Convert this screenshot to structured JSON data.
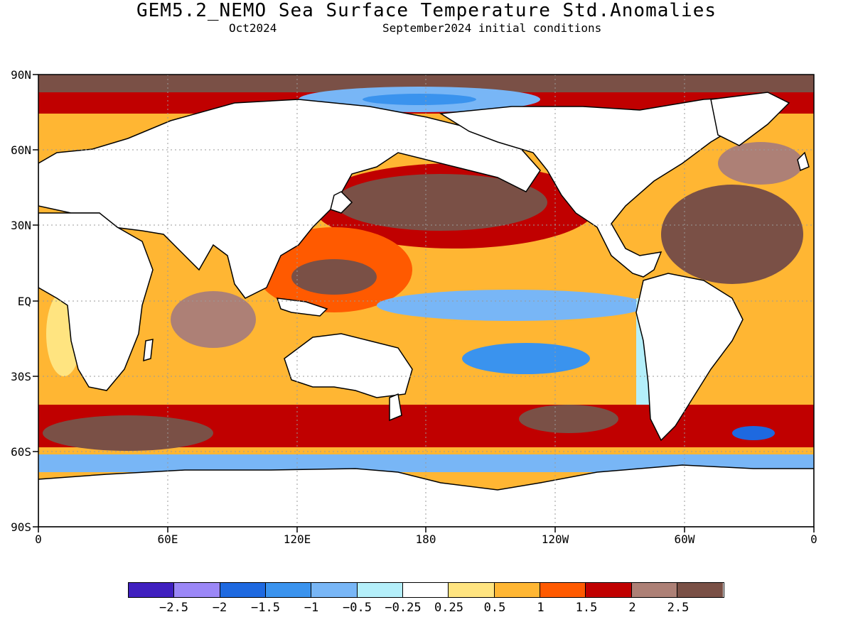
{
  "header": {
    "title": "GEM5.2_NEMO Sea Surface Temperature Std.Anomalies",
    "valid_month": "Oct2024",
    "init": "September2024 initial conditions"
  },
  "map": {
    "lat_labels": [
      "90N",
      "60N",
      "30N",
      "EQ",
      "30S",
      "60S",
      "90S"
    ],
    "lon_labels": [
      "0",
      "60E",
      "120E",
      "180",
      "120W",
      "60W",
      "0"
    ],
    "land_color": "#ffffff"
  },
  "legend": {
    "colors": [
      "#3f1fbf",
      "#9b87f7",
      "#1e69e0",
      "#3a93ee",
      "#78b6f6",
      "#b4effa",
      "#ffffff",
      "#ffe480",
      "#ffb633",
      "#ff5a00",
      "#c00000",
      "#ad8076",
      "#7a5046"
    ],
    "labels": [
      "-2.5",
      "-2",
      "-1.5",
      "-1",
      "-0.5",
      "-0.25",
      "0.25",
      "0.5",
      "1",
      "1.5",
      "2",
      "2.5"
    ]
  }
}
